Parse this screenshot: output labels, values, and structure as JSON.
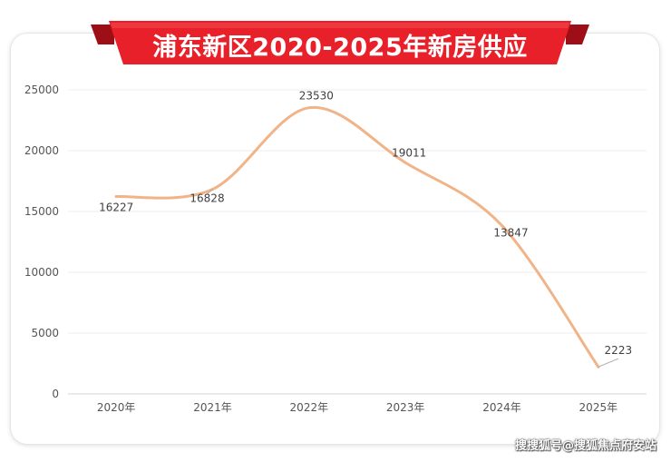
{
  "title": "浦东新区2020-2025年新房供应",
  "colors": {
    "banner": "#e8202a",
    "banner_dark": "#9e0e16",
    "line": "#f0b488",
    "grid": "#ececec",
    "axis_text": "#555555"
  },
  "watermark": "搜搜狐号@搜狐焦点府安站",
  "chart_data": {
    "type": "line",
    "categories": [
      "2020年",
      "2021年",
      "2022年",
      "2023年",
      "2024年",
      "2025年"
    ],
    "values": [
      16227,
      16828,
      23530,
      19011,
      13847,
      2223
    ],
    "data_labels": [
      "16227",
      "16828",
      "23530",
      "19011",
      "13847",
      "2223"
    ],
    "yticks": [
      "0",
      "5000",
      "10000",
      "15000",
      "20000",
      "25000"
    ],
    "ylim": [
      0,
      25000
    ],
    "grid": true,
    "smooth": true,
    "legend": "none"
  }
}
